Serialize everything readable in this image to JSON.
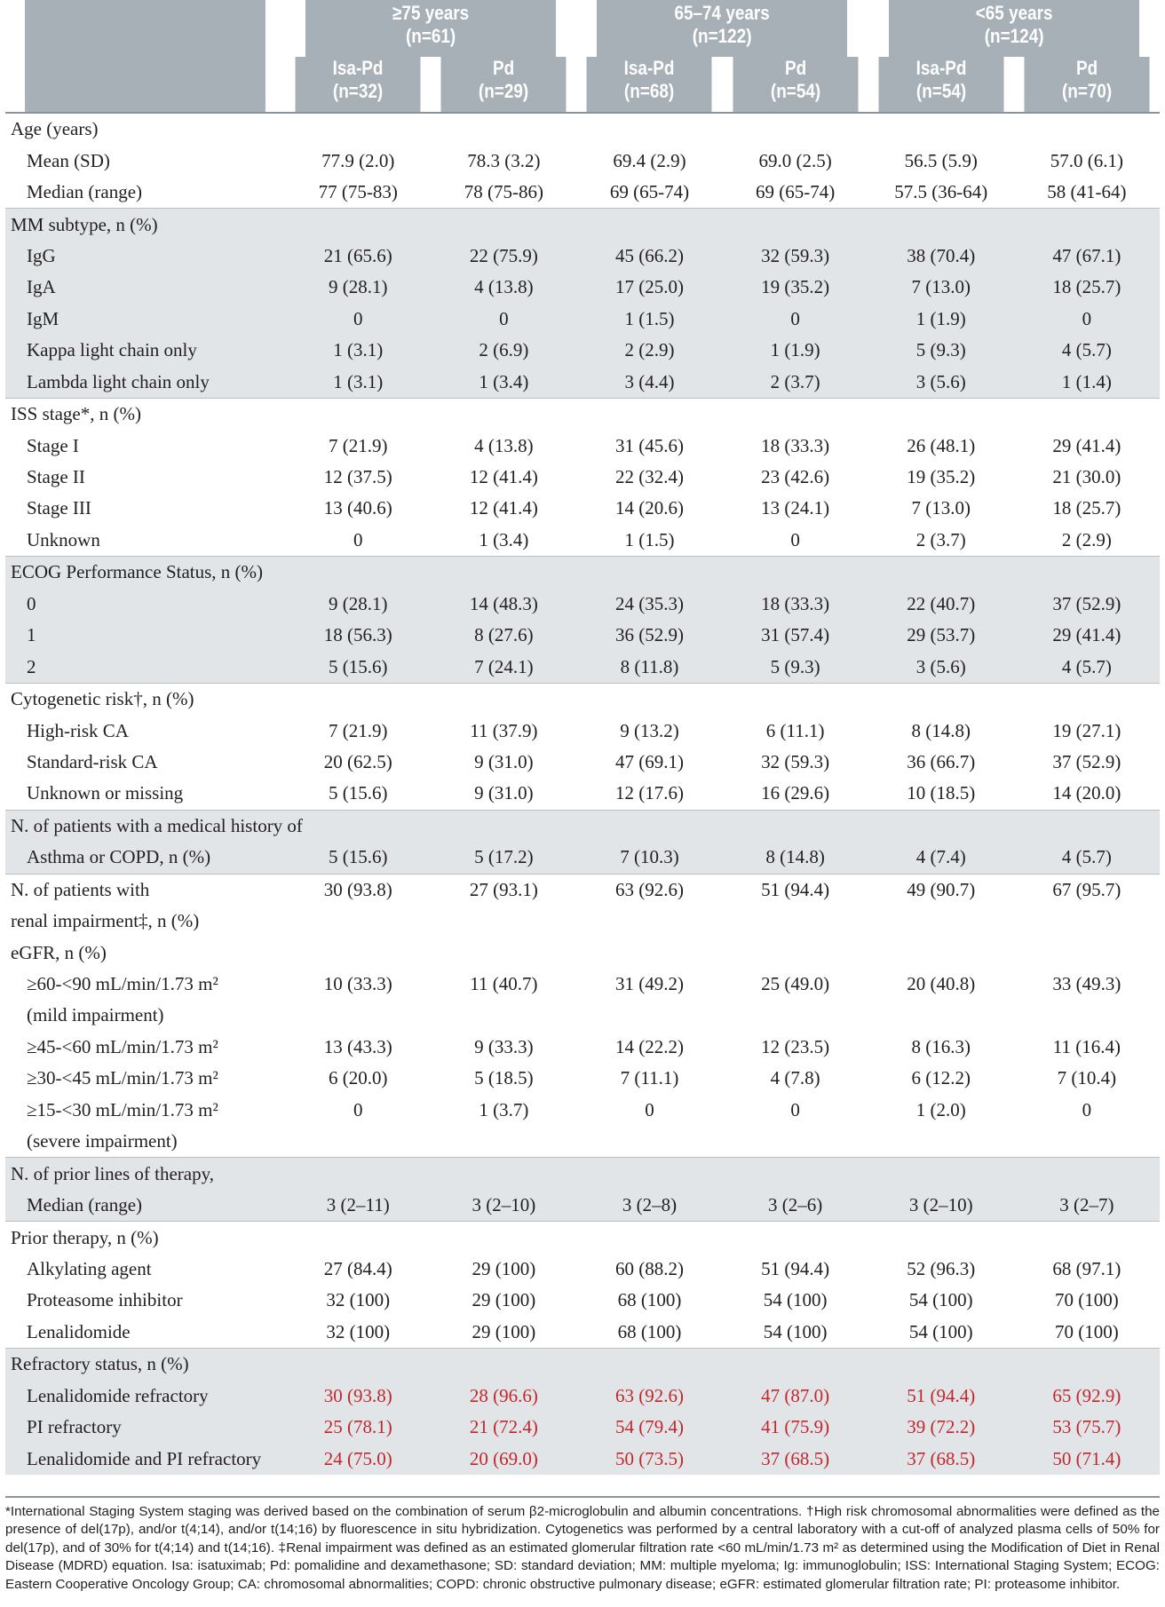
{
  "header": {
    "groups": [
      {
        "label": "≥75 years",
        "n": "(n=61)"
      },
      {
        "label": "65–74 years",
        "n": "(n=122)"
      },
      {
        "label": "<65 years",
        "n": "(n=124)"
      }
    ],
    "arms": [
      {
        "label": "Isa-Pd",
        "n": "(n=32)"
      },
      {
        "label": "Pd",
        "n": "(n=29)"
      },
      {
        "label": "Isa-Pd",
        "n": "(n=68)"
      },
      {
        "label": "Pd",
        "n": "(n=54)"
      },
      {
        "label": "Isa-Pd",
        "n": "(n=54)"
      },
      {
        "label": "Pd",
        "n": "(n=70)"
      }
    ]
  },
  "rows": [
    {
      "label": "Age (years)",
      "sub": false,
      "shade": false,
      "values": []
    },
    {
      "label": "Mean (SD)",
      "sub": true,
      "shade": false,
      "values": [
        "77.9 (2.0)",
        "78.3 (3.2)",
        "69.4 (2.9)",
        "69.0 (2.5)",
        "56.5 (5.9)",
        "57.0 (6.1)"
      ]
    },
    {
      "label": "Median (range)",
      "sub": true,
      "shade": false,
      "values": [
        "77 (75-83)",
        "78 (75-86)",
        "69 (65-74)",
        "69 (65-74)",
        "57.5 (36-64)",
        "58 (41-64)"
      ]
    },
    {
      "label": "MM subtype, n (%)",
      "sub": false,
      "shade": true,
      "values": []
    },
    {
      "label": "IgG",
      "sub": true,
      "shade": true,
      "values": [
        "21 (65.6)",
        "22 (75.9)",
        "45 (66.2)",
        "32 (59.3)",
        "38 (70.4)",
        "47 (67.1)"
      ]
    },
    {
      "label": "IgA",
      "sub": true,
      "shade": true,
      "values": [
        "9 (28.1)",
        "4 (13.8)",
        "17 (25.0)",
        "19 (35.2)",
        "7 (13.0)",
        "18 (25.7)"
      ]
    },
    {
      "label": "IgM",
      "sub": true,
      "shade": true,
      "values": [
        "0",
        "0",
        "1 (1.5)",
        "0",
        "1 (1.9)",
        "0"
      ]
    },
    {
      "label": "Kappa light chain only",
      "sub": true,
      "shade": true,
      "values": [
        "1 (3.1)",
        "2 (6.9)",
        "2 (2.9)",
        "1 (1.9)",
        "5 (9.3)",
        "4 (5.7)"
      ]
    },
    {
      "label": "Lambda light chain only",
      "sub": true,
      "shade": true,
      "values": [
        "1 (3.1)",
        "1 (3.4)",
        "3 (4.4)",
        "2 (3.7)",
        "3 (5.6)",
        "1 (1.4)"
      ]
    },
    {
      "label": "ISS stage*, n (%)",
      "sub": false,
      "shade": false,
      "values": []
    },
    {
      "label": "Stage I",
      "sub": true,
      "shade": false,
      "values": [
        "7 (21.9)",
        "4 (13.8)",
        "31 (45.6)",
        "18 (33.3)",
        "26 (48.1)",
        "29 (41.4)"
      ]
    },
    {
      "label": "Stage II",
      "sub": true,
      "shade": false,
      "values": [
        "12 (37.5)",
        "12 (41.4)",
        "22 (32.4)",
        "23 (42.6)",
        "19 (35.2)",
        "21 (30.0)"
      ]
    },
    {
      "label": "Stage III",
      "sub": true,
      "shade": false,
      "values": [
        "13 (40.6)",
        "12 (41.4)",
        "14 (20.6)",
        "13 (24.1)",
        "7 (13.0)",
        "18 (25.7)"
      ]
    },
    {
      "label": "Unknown",
      "sub": true,
      "shade": false,
      "values": [
        "0",
        "1 (3.4)",
        "1 (1.5)",
        "0",
        "2 (3.7)",
        "2 (2.9)"
      ]
    },
    {
      "label": "ECOG Performance Status, n (%)",
      "sub": false,
      "shade": true,
      "values": []
    },
    {
      "label": "0",
      "sub": true,
      "shade": true,
      "values": [
        "9 (28.1)",
        "14 (48.3)",
        "24 (35.3)",
        "18 (33.3)",
        "22 (40.7)",
        "37 (52.9)"
      ]
    },
    {
      "label": "1",
      "sub": true,
      "shade": true,
      "values": [
        "18 (56.3)",
        "8 (27.6)",
        "36 (52.9)",
        "31 (57.4)",
        "29 (53.7)",
        "29 (41.4)"
      ]
    },
    {
      "label": "2",
      "sub": true,
      "shade": true,
      "values": [
        "5 (15.6)",
        "7 (24.1)",
        "8 (11.8)",
        "5 (9.3)",
        "3 (5.6)",
        "4 (5.7)"
      ]
    },
    {
      "label": "Cytogenetic risk†, n (%)",
      "sub": false,
      "shade": false,
      "values": []
    },
    {
      "label": "High-risk CA",
      "sub": true,
      "shade": false,
      "values": [
        "7 (21.9)",
        "11 (37.9)",
        "9 (13.2)",
        "6 (11.1)",
        "8 (14.8)",
        "19 (27.1)"
      ]
    },
    {
      "label": "Standard-risk CA",
      "sub": true,
      "shade": false,
      "values": [
        "20 (62.5)",
        "9 (31.0)",
        "47 (69.1)",
        "32 (59.3)",
        "36 (66.7)",
        "37 (52.9)"
      ]
    },
    {
      "label": "Unknown or missing",
      "sub": true,
      "shade": false,
      "values": [
        "5 (15.6)",
        "9 (31.0)",
        "12 (17.6)",
        "16 (29.6)",
        "10 (18.5)",
        "14 (20.0)"
      ]
    },
    {
      "label": "N. of patients with a medical history of",
      "sub": false,
      "shade": true,
      "values": []
    },
    {
      "label": "Asthma or COPD, n (%)",
      "sub": true,
      "shade": true,
      "values": [
        "5 (15.6)",
        "5 (17.2)",
        "7 (10.3)",
        "8 (14.8)",
        "4 (7.4)",
        "4 (5.7)"
      ]
    },
    {
      "label": "N. of patients with",
      "sub": false,
      "shade": false,
      "values": [
        "30 (93.8)",
        "27 (93.1)",
        "63 (92.6)",
        "51 (94.4)",
        "49 (90.7)",
        "67 (95.7)"
      ]
    },
    {
      "label": "renal impairment‡, n (%)",
      "sub": false,
      "shade": false,
      "values": []
    },
    {
      "label": "eGFR, n (%)",
      "sub": false,
      "shade": false,
      "values": []
    },
    {
      "label": "≥60-<90 mL/min/1.73 m²",
      "sub": true,
      "shade": false,
      "values": [
        "10 (33.3)",
        "11 (40.7)",
        "31 (49.2)",
        "25 (49.0)",
        "20 (40.8)",
        "33 (49.3)"
      ]
    },
    {
      "label": "(mild impairment)",
      "sub": true,
      "shade": false,
      "values": []
    },
    {
      "label": "≥45-<60 mL/min/1.73 m²",
      "sub": true,
      "shade": false,
      "values": [
        "13 (43.3)",
        "9 (33.3)",
        "14 (22.2)",
        "12 (23.5)",
        "8 (16.3)",
        "11 (16.4)"
      ]
    },
    {
      "label": "≥30-<45 mL/min/1.73 m²",
      "sub": true,
      "shade": false,
      "values": [
        "6 (20.0)",
        "5 (18.5)",
        "7 (11.1)",
        "4 (7.8)",
        "6 (12.2)",
        "7 (10.4)"
      ]
    },
    {
      "label": "≥15-<30 mL/min/1.73 m²",
      "sub": true,
      "shade": false,
      "values": [
        "0",
        "1 (3.7)",
        "0",
        "0",
        "1 (2.0)",
        "0"
      ]
    },
    {
      "label": "(severe impairment)",
      "sub": true,
      "shade": false,
      "values": []
    },
    {
      "label": "N. of prior lines of therapy,",
      "sub": false,
      "shade": true,
      "values": []
    },
    {
      "label": "Median (range)",
      "sub": true,
      "shade": true,
      "values": [
        "3 (2–11)",
        "3 (2–10)",
        "3 (2–8)",
        "3 (2–6)",
        "3 (2–10)",
        "3 (2–7)"
      ]
    },
    {
      "label": "Prior therapy, n (%)",
      "sub": false,
      "shade": false,
      "values": []
    },
    {
      "label": "Alkylating agent",
      "sub": true,
      "shade": false,
      "values": [
        "27 (84.4)",
        "29 (100)",
        "60 (88.2)",
        "51 (94.4)",
        "52 (96.3)",
        "68 (97.1)"
      ]
    },
    {
      "label": "Proteasome inhibitor",
      "sub": true,
      "shade": false,
      "values": [
        "32 (100)",
        "29 (100)",
        "68 (100)",
        "54 (100)",
        "54 (100)",
        "70 (100)"
      ]
    },
    {
      "label": "Lenalidomide",
      "sub": true,
      "shade": false,
      "values": [
        "32 (100)",
        "29 (100)",
        "68 (100)",
        "54 (100)",
        "54 (100)",
        "70 (100)"
      ]
    },
    {
      "label": "Refractory status, n (%)",
      "sub": false,
      "shade": true,
      "values": []
    },
    {
      "label": "Lenalidomide refractory",
      "sub": true,
      "shade": true,
      "red": true,
      "values": [
        "30 (93.8)",
        "28 (96.6)",
        "63 (92.6)",
        "47 (87.0)",
        "51 (94.4)",
        "65 (92.9)"
      ]
    },
    {
      "label": "PI refractory",
      "sub": true,
      "shade": true,
      "red": true,
      "values": [
        "25 (78.1)",
        "21 (72.4)",
        "54 (79.4)",
        "41 (75.9)",
        "39 (72.2)",
        "53 (75.7)"
      ]
    },
    {
      "label": "Lenalidomide and PI refractory",
      "sub": true,
      "shade": true,
      "red": true,
      "values": [
        "24 (75.0)",
        "20 (69.0)",
        "50 (73.5)",
        "37 (68.5)",
        "37 (68.5)",
        "50 (71.4)"
      ]
    }
  ],
  "footnote": "*International Staging System staging was derived based on the combination of serum β2-microglobulin and albumin concentrations. †High risk chromosomal abnormalities were defined as the presence of del(17p), and/or t(4;14), and/or t(14;16) by fluorescence in situ hybridization. Cytogenetics was performed by a central laboratory with a cut-off of analyzed plasma cells of 50% for del(17p), and of 30% for t(4;14) and t(14;16). ‡Renal impairment was defined as an estimated glomerular filtration rate <60 mL/min/1.73 m² as determined using the Modification of Diet in Renal Disease (MDRD) equation. Isa: isatuximab; Pd: pomalidine and dexamethasone; SD: standard deviation; MM: multiple myeloma; Ig: immunoglobulin; ISS: International Staging System; ECOG: Eastern Cooperative Oncology Group; CA: chromosomal abnormalities; COPD: chronic obstructive pulmonary disease; eGFR: estimated glomerular filtration rate; PI: proteasome inhibitor."
}
